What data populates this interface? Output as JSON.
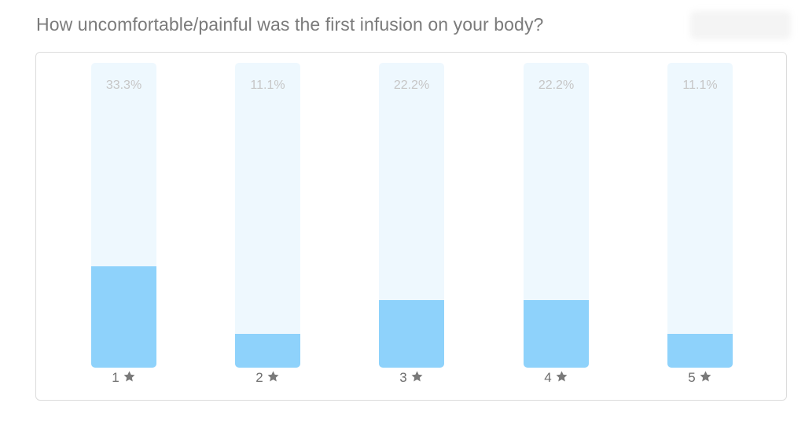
{
  "question": {
    "title": "How uncomfortable/painful was the first infusion on your body?"
  },
  "chart_data": {
    "type": "bar",
    "categories": [
      "1",
      "2",
      "3",
      "4",
      "5"
    ],
    "values": [
      33.3,
      11.1,
      22.2,
      22.2,
      11.1
    ],
    "value_labels": [
      "33.3%",
      "11.1%",
      "22.2%",
      "22.2%",
      "11.1%"
    ],
    "category_icon": "star-icon",
    "ylim": [
      0,
      100
    ],
    "title": "How uncomfortable/painful was the first infusion on your body?",
    "xlabel": "",
    "ylabel": "",
    "grid": false,
    "colors": {
      "fill": "#8ed2fb",
      "track": "#eef8fe",
      "label": "#6e6e6e",
      "value_label": "#c6c6c6",
      "star": "#7a7a7a"
    }
  }
}
